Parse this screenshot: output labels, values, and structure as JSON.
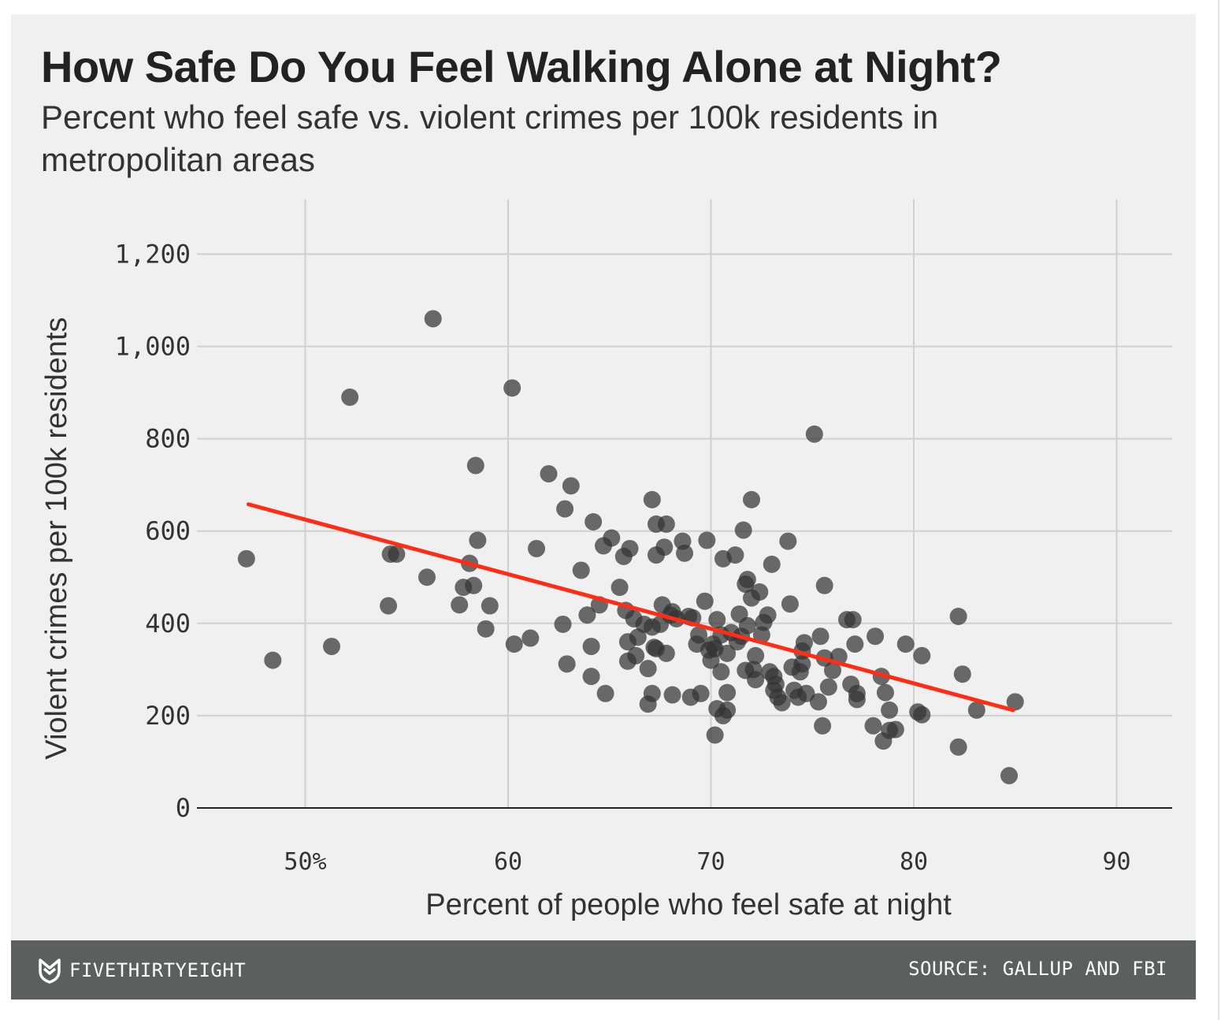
{
  "title": "How Safe Do You Feel Walking Alone at Night?",
  "subtitle": "Percent who feel safe vs. violent crimes per 100k residents in metropolitan areas",
  "footer": {
    "brand": "FIVETHIRTYEIGHT",
    "brand_icon": "fivethirtyeight-logo-icon",
    "source": "SOURCE: GALLUP AND FBI"
  },
  "colors": {
    "background": "#f0f0f0",
    "point": "#333333",
    "trend_line": "#ff2d15",
    "footer": "#5d5f5e"
  },
  "chart_data": {
    "type": "scatter",
    "title": "How Safe Do You Feel Walking Alone at Night?",
    "subtitle": "Percent who feel safe vs. violent crimes per 100k residents in metropolitan areas",
    "xlabel": "Percent of people who feel safe at night",
    "ylabel": "Violent crimes per 100k residents",
    "xlim": [
      45,
      92
    ],
    "ylim": [
      0,
      1200
    ],
    "x_ticks": [
      50,
      60,
      70,
      80,
      90
    ],
    "x_tick_labels": [
      "50%",
      "60",
      "70",
      "80",
      "90"
    ],
    "y_ticks": [
      0,
      200,
      400,
      600,
      800,
      1000,
      1200
    ],
    "y_tick_labels": [
      "0",
      "200",
      "400",
      "600",
      "800",
      "1,000",
      "1,200"
    ],
    "grid": true,
    "trend_line": {
      "x": [
        47.2,
        84.9
      ],
      "y": [
        658,
        212
      ]
    },
    "points": [
      {
        "x": 56.3,
        "y": 1060
      },
      {
        "x": 52.2,
        "y": 890
      },
      {
        "x": 60.2,
        "y": 910
      },
      {
        "x": 75.1,
        "y": 810
      },
      {
        "x": 47.1,
        "y": 540
      },
      {
        "x": 48.4,
        "y": 320
      },
      {
        "x": 51.3,
        "y": 350
      },
      {
        "x": 54.1,
        "y": 438
      },
      {
        "x": 54.2,
        "y": 550
      },
      {
        "x": 54.5,
        "y": 550
      },
      {
        "x": 56.0,
        "y": 500
      },
      {
        "x": 57.6,
        "y": 440
      },
      {
        "x": 57.8,
        "y": 478
      },
      {
        "x": 58.1,
        "y": 530
      },
      {
        "x": 58.4,
        "y": 742
      },
      {
        "x": 58.5,
        "y": 580
      },
      {
        "x": 58.3,
        "y": 482
      },
      {
        "x": 58.9,
        "y": 388
      },
      {
        "x": 59.1,
        "y": 438
      },
      {
        "x": 60.3,
        "y": 355
      },
      {
        "x": 61.1,
        "y": 368
      },
      {
        "x": 61.4,
        "y": 562
      },
      {
        "x": 62.0,
        "y": 724
      },
      {
        "x": 62.7,
        "y": 398
      },
      {
        "x": 62.8,
        "y": 648
      },
      {
        "x": 62.9,
        "y": 312
      },
      {
        "x": 63.1,
        "y": 698
      },
      {
        "x": 63.6,
        "y": 515
      },
      {
        "x": 63.9,
        "y": 418
      },
      {
        "x": 64.1,
        "y": 350
      },
      {
        "x": 64.1,
        "y": 285
      },
      {
        "x": 64.2,
        "y": 620
      },
      {
        "x": 64.5,
        "y": 440
      },
      {
        "x": 64.7,
        "y": 568
      },
      {
        "x": 64.8,
        "y": 248
      },
      {
        "x": 65.1,
        "y": 585
      },
      {
        "x": 65.5,
        "y": 478
      },
      {
        "x": 65.7,
        "y": 545
      },
      {
        "x": 65.8,
        "y": 428
      },
      {
        "x": 65.9,
        "y": 360
      },
      {
        "x": 65.9,
        "y": 318
      },
      {
        "x": 66.0,
        "y": 562
      },
      {
        "x": 66.2,
        "y": 410
      },
      {
        "x": 66.3,
        "y": 330
      },
      {
        "x": 66.4,
        "y": 370
      },
      {
        "x": 66.7,
        "y": 398
      },
      {
        "x": 66.9,
        "y": 302
      },
      {
        "x": 66.9,
        "y": 225
      },
      {
        "x": 67.1,
        "y": 392
      },
      {
        "x": 67.1,
        "y": 668
      },
      {
        "x": 67.1,
        "y": 248
      },
      {
        "x": 67.2,
        "y": 348
      },
      {
        "x": 67.3,
        "y": 345
      },
      {
        "x": 67.3,
        "y": 615
      },
      {
        "x": 67.3,
        "y": 548
      },
      {
        "x": 67.5,
        "y": 398
      },
      {
        "x": 67.6,
        "y": 440
      },
      {
        "x": 67.7,
        "y": 565
      },
      {
        "x": 67.8,
        "y": 335
      },
      {
        "x": 67.8,
        "y": 615
      },
      {
        "x": 68.0,
        "y": 418
      },
      {
        "x": 68.1,
        "y": 425
      },
      {
        "x": 68.1,
        "y": 245
      },
      {
        "x": 68.3,
        "y": 410
      },
      {
        "x": 68.6,
        "y": 578
      },
      {
        "x": 68.7,
        "y": 552
      },
      {
        "x": 68.9,
        "y": 415
      },
      {
        "x": 69.0,
        "y": 240
      },
      {
        "x": 69.1,
        "y": 412
      },
      {
        "x": 69.3,
        "y": 355
      },
      {
        "x": 69.4,
        "y": 375
      },
      {
        "x": 69.5,
        "y": 248
      },
      {
        "x": 69.7,
        "y": 448
      },
      {
        "x": 69.8,
        "y": 580
      },
      {
        "x": 69.9,
        "y": 342
      },
      {
        "x": 70.0,
        "y": 320
      },
      {
        "x": 70.1,
        "y": 355
      },
      {
        "x": 70.2,
        "y": 345
      },
      {
        "x": 70.2,
        "y": 158
      },
      {
        "x": 70.3,
        "y": 408
      },
      {
        "x": 70.3,
        "y": 215
      },
      {
        "x": 70.5,
        "y": 375
      },
      {
        "x": 70.5,
        "y": 295
      },
      {
        "x": 70.6,
        "y": 540
      },
      {
        "x": 70.6,
        "y": 200
      },
      {
        "x": 70.8,
        "y": 250
      },
      {
        "x": 70.8,
        "y": 335
      },
      {
        "x": 70.8,
        "y": 212
      },
      {
        "x": 71.0,
        "y": 380
      },
      {
        "x": 71.2,
        "y": 548
      },
      {
        "x": 71.3,
        "y": 360
      },
      {
        "x": 71.4,
        "y": 420
      },
      {
        "x": 71.5,
        "y": 372
      },
      {
        "x": 71.6,
        "y": 602
      },
      {
        "x": 71.7,
        "y": 485
      },
      {
        "x": 71.7,
        "y": 298
      },
      {
        "x": 71.8,
        "y": 495
      },
      {
        "x": 71.8,
        "y": 395
      },
      {
        "x": 72.0,
        "y": 668
      },
      {
        "x": 72.0,
        "y": 455
      },
      {
        "x": 72.1,
        "y": 300
      },
      {
        "x": 72.2,
        "y": 330
      },
      {
        "x": 72.2,
        "y": 278
      },
      {
        "x": 72.4,
        "y": 468
      },
      {
        "x": 72.5,
        "y": 375
      },
      {
        "x": 72.6,
        "y": 402
      },
      {
        "x": 72.8,
        "y": 418
      },
      {
        "x": 72.9,
        "y": 295
      },
      {
        "x": 73.0,
        "y": 528
      },
      {
        "x": 73.1,
        "y": 255
      },
      {
        "x": 73.1,
        "y": 285
      },
      {
        "x": 73.2,
        "y": 268
      },
      {
        "x": 73.3,
        "y": 240
      },
      {
        "x": 73.5,
        "y": 228
      },
      {
        "x": 73.8,
        "y": 578
      },
      {
        "x": 73.9,
        "y": 442
      },
      {
        "x": 74.0,
        "y": 305
      },
      {
        "x": 74.1,
        "y": 255
      },
      {
        "x": 74.3,
        "y": 240
      },
      {
        "x": 74.4,
        "y": 295
      },
      {
        "x": 74.5,
        "y": 340
      },
      {
        "x": 74.5,
        "y": 312
      },
      {
        "x": 74.6,
        "y": 358
      },
      {
        "x": 74.7,
        "y": 248
      },
      {
        "x": 75.3,
        "y": 230
      },
      {
        "x": 75.4,
        "y": 372
      },
      {
        "x": 75.5,
        "y": 178
      },
      {
        "x": 75.6,
        "y": 482
      },
      {
        "x": 75.6,
        "y": 325
      },
      {
        "x": 75.8,
        "y": 262
      },
      {
        "x": 76.0,
        "y": 298
      },
      {
        "x": 76.3,
        "y": 328
      },
      {
        "x": 76.7,
        "y": 408
      },
      {
        "x": 76.9,
        "y": 268
      },
      {
        "x": 77.0,
        "y": 408
      },
      {
        "x": 77.1,
        "y": 355
      },
      {
        "x": 77.2,
        "y": 248
      },
      {
        "x": 77.2,
        "y": 235
      },
      {
        "x": 78.0,
        "y": 178
      },
      {
        "x": 78.1,
        "y": 372
      },
      {
        "x": 78.4,
        "y": 285
      },
      {
        "x": 78.5,
        "y": 145
      },
      {
        "x": 78.6,
        "y": 250
      },
      {
        "x": 78.8,
        "y": 212
      },
      {
        "x": 78.8,
        "y": 168
      },
      {
        "x": 79.1,
        "y": 170
      },
      {
        "x": 79.6,
        "y": 355
      },
      {
        "x": 80.2,
        "y": 208
      },
      {
        "x": 80.4,
        "y": 330
      },
      {
        "x": 80.4,
        "y": 202
      },
      {
        "x": 82.2,
        "y": 415
      },
      {
        "x": 82.2,
        "y": 132
      },
      {
        "x": 82.4,
        "y": 290
      },
      {
        "x": 83.1,
        "y": 212
      },
      {
        "x": 84.7,
        "y": 70
      },
      {
        "x": 85.0,
        "y": 230
      }
    ]
  }
}
